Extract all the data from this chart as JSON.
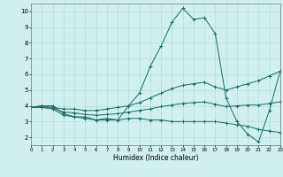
{
  "xlabel": "Humidex (Indice chaleur)",
  "xlim": [
    0,
    23
  ],
  "ylim": [
    1.5,
    10.5
  ],
  "yticks": [
    2,
    3,
    4,
    5,
    6,
    7,
    8,
    9,
    10
  ],
  "xticks": [
    0,
    1,
    2,
    3,
    4,
    5,
    6,
    7,
    8,
    9,
    10,
    11,
    12,
    13,
    14,
    15,
    16,
    17,
    18,
    19,
    20,
    21,
    22,
    23
  ],
  "bg_color": "#cff0ee",
  "grid_color": "#aed8d4",
  "line_color": "#1a6b60",
  "series": [
    {
      "x": [
        0,
        1,
        2,
        3,
        4,
        5,
        6,
        7,
        8,
        9,
        10,
        11,
        12,
        13,
        14,
        15,
        16,
        17,
        18,
        19,
        20,
        21,
        22,
        23
      ],
      "y": [
        3.9,
        4.0,
        4.0,
        3.5,
        3.3,
        3.3,
        3.1,
        3.2,
        3.1,
        4.0,
        4.8,
        6.5,
        7.8,
        9.3,
        10.2,
        9.5,
        9.6,
        8.6,
        4.5,
        3.0,
        2.2,
        1.7,
        3.7,
        6.2
      ]
    },
    {
      "x": [
        0,
        1,
        2,
        3,
        4,
        5,
        6,
        7,
        8,
        9,
        10,
        11,
        12,
        13,
        14,
        15,
        16,
        17,
        18,
        19,
        20,
        21,
        22,
        23
      ],
      "y": [
        3.9,
        4.0,
        3.9,
        3.8,
        3.8,
        3.7,
        3.7,
        3.8,
        3.9,
        4.0,
        4.2,
        4.5,
        4.8,
        5.1,
        5.3,
        5.4,
        5.5,
        5.2,
        5.0,
        5.2,
        5.4,
        5.6,
        5.9,
        6.2
      ]
    },
    {
      "x": [
        0,
        1,
        2,
        3,
        4,
        5,
        6,
        7,
        8,
        9,
        10,
        11,
        12,
        13,
        14,
        15,
        16,
        17,
        18,
        19,
        20,
        21,
        22,
        23
      ],
      "y": [
        3.9,
        3.9,
        3.8,
        3.4,
        3.3,
        3.2,
        3.1,
        3.1,
        3.1,
        3.2,
        3.2,
        3.1,
        3.1,
        3.0,
        3.0,
        3.0,
        3.0,
        3.0,
        2.9,
        2.8,
        2.7,
        2.5,
        2.4,
        2.3
      ]
    },
    {
      "x": [
        0,
        1,
        2,
        3,
        4,
        5,
        6,
        7,
        8,
        9,
        10,
        11,
        12,
        13,
        14,
        15,
        16,
        17,
        18,
        19,
        20,
        21,
        22,
        23
      ],
      "y": [
        3.9,
        3.9,
        3.85,
        3.6,
        3.55,
        3.45,
        3.4,
        3.45,
        3.5,
        3.6,
        3.7,
        3.8,
        3.95,
        4.05,
        4.15,
        4.2,
        4.25,
        4.1,
        3.95,
        4.0,
        4.05,
        4.05,
        4.15,
        4.25
      ]
    }
  ]
}
